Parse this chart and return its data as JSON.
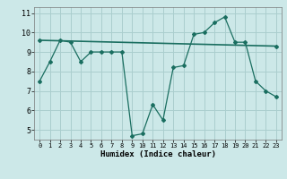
{
  "line1_x": [
    0,
    1,
    2,
    3,
    4,
    5,
    6,
    7,
    8,
    9,
    10,
    11,
    12,
    13,
    14,
    15,
    16,
    17,
    18,
    19,
    20,
    21,
    22,
    23
  ],
  "line1_y": [
    7.5,
    8.5,
    9.6,
    9.5,
    8.5,
    9.0,
    9.0,
    9.0,
    9.0,
    4.7,
    4.8,
    6.3,
    5.5,
    8.2,
    8.3,
    9.9,
    10.0,
    10.5,
    10.8,
    9.5,
    9.5,
    7.5,
    7.0,
    6.7
  ],
  "line2_x": [
    0,
    23
  ],
  "line2_y": [
    9.6,
    9.3
  ],
  "line_color": "#1a6e60",
  "bg_color": "#cce8e8",
  "grid_color": "#aacece",
  "xlabel": "Humidex (Indice chaleur)",
  "ylabel_ticks": [
    5,
    6,
    7,
    8,
    9,
    10,
    11
  ],
  "xlim": [
    -0.5,
    23.5
  ],
  "ylim": [
    4.5,
    11.3
  ],
  "xticks": [
    0,
    1,
    2,
    3,
    4,
    5,
    6,
    7,
    8,
    9,
    10,
    11,
    12,
    13,
    14,
    15,
    16,
    17,
    18,
    19,
    20,
    21,
    22,
    23
  ]
}
